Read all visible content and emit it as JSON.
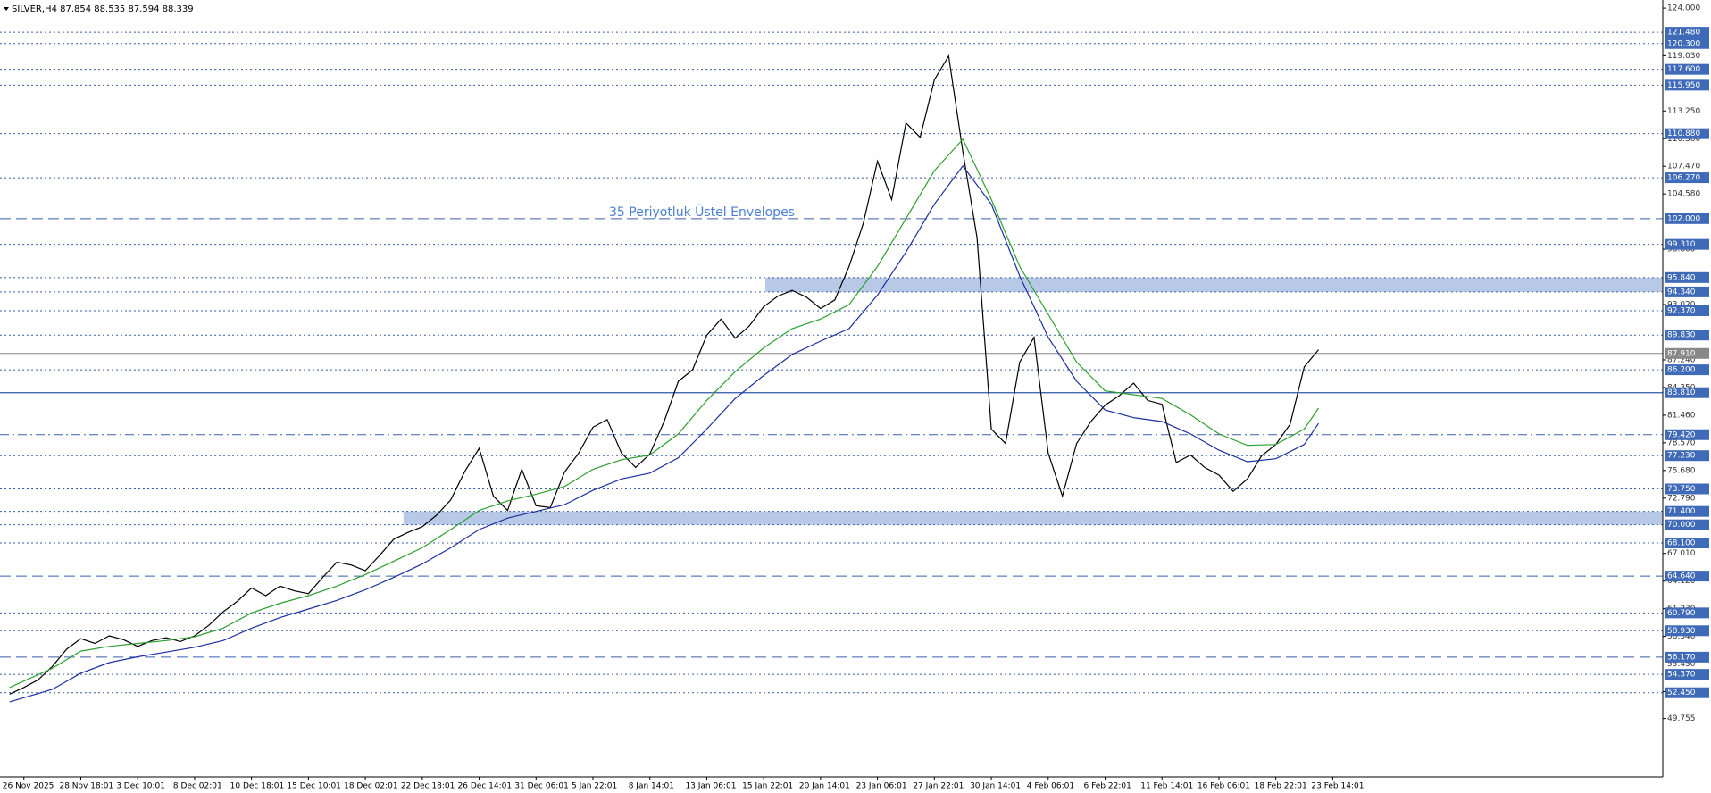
{
  "chart_data": {
    "type": "line",
    "title": "SILVER,H4  87.854 88.535 87.594 88.339",
    "annotation": "35 Periyotluk Üstel Envelopes",
    "xlim": [
      -0.42,
      28.8
    ],
    "ylim": [
      43.65,
      124.85
    ],
    "xticks": [
      {
        "value": 0,
        "label": "26 Nov 2025"
      },
      {
        "value": 1,
        "label": "28 Nov 18:01"
      },
      {
        "value": 2,
        "label": "3 Dec 10:01"
      },
      {
        "value": 3,
        "label": "8 Dec 02:01"
      },
      {
        "value": 4,
        "label": "10 Dec 18:01"
      },
      {
        "value": 5,
        "label": "15 Dec 10:01"
      },
      {
        "value": 6,
        "label": "18 Dec 02:01"
      },
      {
        "value": 7,
        "label": "22 Dec 18:01"
      },
      {
        "value": 8,
        "label": "26 Dec 14:01"
      },
      {
        "value": 9,
        "label": "31 Dec 06:01"
      },
      {
        "value": 10,
        "label": "5 Jan 22:01"
      },
      {
        "value": 11,
        "label": "8 Jan 14:01"
      },
      {
        "value": 12,
        "label": "13 Jan 06:01"
      },
      {
        "value": 13,
        "label": "15 Jan 22:01"
      },
      {
        "value": 14,
        "label": "20 Jan 14:01"
      },
      {
        "value": 15,
        "label": "23 Jan 06:01"
      },
      {
        "value": 16,
        "label": "27 Jan 22:01"
      },
      {
        "value": 17,
        "label": "30 Jan 14:01"
      },
      {
        "value": 18,
        "label": "4 Feb 06:01"
      },
      {
        "value": 19,
        "label": "6 Feb 22:01"
      },
      {
        "value": 20,
        "label": "11 Feb 14:01"
      },
      {
        "value": 21,
        "label": "16 Feb 06:01"
      },
      {
        "value": 22,
        "label": "18 Feb 22:01"
      },
      {
        "value": 23,
        "label": "23 Feb 14:01"
      }
    ],
    "yticks": [
      {
        "value": 124,
        "label": "124.000"
      },
      {
        "value": 119.03,
        "label": "119.030"
      },
      {
        "value": 113.25,
        "label": "113.250"
      },
      {
        "value": 110.36,
        "label": "110.360"
      },
      {
        "value": 107.47,
        "label": "107.470"
      },
      {
        "value": 104.58,
        "label": "104.580"
      },
      {
        "value": 98.8,
        "label": "98.800"
      },
      {
        "value": 93.02,
        "label": "93.020"
      },
      {
        "value": 87.24,
        "label": "87.240"
      },
      {
        "value": 84.35,
        "label": "84.350"
      },
      {
        "value": 81.46,
        "label": "81.460"
      },
      {
        "value": 78.57,
        "label": "78.570"
      },
      {
        "value": 75.68,
        "label": "75.680"
      },
      {
        "value": 72.79,
        "label": "72.790"
      },
      {
        "value": 67.01,
        "label": "67.010"
      },
      {
        "value": 64.12,
        "label": "64.120"
      },
      {
        "value": 61.23,
        "label": "61.230"
      },
      {
        "value": 58.34,
        "label": "58.340"
      },
      {
        "value": 55.45,
        "label": "55.450"
      },
      {
        "value": 52.56,
        "label": "52.560"
      },
      {
        "value": 49.755,
        "label": "49.755"
      }
    ],
    "levels": [
      {
        "value": 121.48,
        "label": "121.480",
        "style": "dotted"
      },
      {
        "value": 120.3,
        "label": "120.300",
        "style": "dotted"
      },
      {
        "value": 117.6,
        "label": "117.600",
        "style": "dotted"
      },
      {
        "value": 115.95,
        "label": "115.950",
        "style": "dotted"
      },
      {
        "value": 110.88,
        "label": "110.880",
        "style": "dotted"
      },
      {
        "value": 106.27,
        "label": "106.270",
        "style": "dotted"
      },
      {
        "value": 102,
        "label": "102.000",
        "style": "dashed"
      },
      {
        "value": 99.31,
        "label": "99.310",
        "style": "dotted"
      },
      {
        "value": 95.84,
        "label": "95.840",
        "style": "dotted"
      },
      {
        "value": 94.34,
        "label": "94.340",
        "style": "dotted"
      },
      {
        "value": 92.37,
        "label": "92.370",
        "style": "dotted"
      },
      {
        "value": 89.83,
        "label": "89.830",
        "style": "dotted"
      },
      {
        "value": 87.91,
        "label": "87.910",
        "style": "solid-gray"
      },
      {
        "value": 86.2,
        "label": "86.200",
        "style": "dotted"
      },
      {
        "value": 83.81,
        "label": "83.810",
        "style": "solid"
      },
      {
        "value": 79.42,
        "label": "79.420",
        "style": "dashdot"
      },
      {
        "value": 77.23,
        "label": "77.230",
        "style": "dotted"
      },
      {
        "value": 73.75,
        "label": "73.750",
        "style": "dotted"
      },
      {
        "value": 71.4,
        "label": "71.400",
        "style": "dotted"
      },
      {
        "value": 70,
        "label": "70.000",
        "style": "dotted"
      },
      {
        "value": 68.1,
        "label": "68.100",
        "style": "dotted"
      },
      {
        "value": 64.64,
        "label": "64.640",
        "style": "dashed"
      },
      {
        "value": 60.79,
        "label": "60.790",
        "style": "dotted"
      },
      {
        "value": 58.93,
        "label": "58.930",
        "style": "dotted"
      },
      {
        "value": 56.17,
        "label": "56.170",
        "style": "dashed"
      },
      {
        "value": 54.37,
        "label": "54.370",
        "style": "dotted"
      },
      {
        "value": 52.45,
        "label": "52.450",
        "style": "dotted"
      }
    ],
    "zones": [
      {
        "x_start": 13.03,
        "low": 94.34,
        "high": 95.84,
        "color": "#b7c9e6"
      },
      {
        "x_start": 6.67,
        "low": 70,
        "high": 71.4,
        "color": "#b7c9e6"
      }
    ],
    "series": [
      {
        "color": "#000000",
        "x": [
          -0.25,
          0,
          0.25,
          0.5,
          0.75,
          1,
          1.25,
          1.5,
          1.75,
          2,
          2.25,
          2.5,
          2.75,
          3,
          3.25,
          3.5,
          3.75,
          4,
          4.25,
          4.5,
          4.75,
          5,
          5.25,
          5.5,
          5.75,
          6,
          6.25,
          6.5,
          6.75,
          7,
          7.25,
          7.5,
          7.75,
          8,
          8.25,
          8.5,
          8.75,
          9,
          9.25,
          9.5,
          9.75,
          10,
          10.25,
          10.5,
          10.75,
          11,
          11.25,
          11.5,
          11.75,
          12,
          12.25,
          12.5,
          12.75,
          13,
          13.25,
          13.5,
          13.75,
          14,
          14.25,
          14.5,
          14.75,
          15,
          15.25,
          15.5,
          15.75,
          16,
          16.25,
          16.5,
          16.75,
          17,
          17.25,
          17.5,
          17.75,
          18,
          18.25,
          18.5,
          18.75,
          19,
          19.25,
          19.5,
          19.75,
          20,
          20.25,
          20.5,
          20.75,
          21,
          21.25,
          21.5,
          21.75,
          22,
          22.25,
          22.5,
          22.75
        ],
        "values": [
          52.3,
          53.0,
          53.8,
          55.2,
          57.0,
          58.1,
          57.6,
          58.4,
          58.0,
          57.3,
          57.9,
          58.2,
          57.8,
          58.4,
          59.5,
          60.9,
          62.0,
          63.4,
          62.6,
          63.6,
          63.1,
          62.8,
          64.5,
          66.1,
          65.8,
          65.2,
          66.8,
          68.5,
          69.2,
          69.8,
          71.0,
          72.6,
          75.6,
          78.0,
          73.0,
          71.5,
          75.8,
          72.0,
          71.8,
          75.5,
          77.5,
          80.2,
          81.0,
          77.5,
          76.0,
          77.4,
          80.8,
          85.0,
          86.2,
          89.8,
          91.5,
          89.5,
          90.8,
          92.8,
          93.9,
          94.5,
          93.8,
          92.6,
          93.5,
          97.0,
          101.5,
          108.0,
          104.0,
          112.0,
          110.5,
          116.5,
          119.0,
          109.0,
          100.0,
          80.0,
          78.5,
          87.0,
          89.6,
          77.5,
          73.0,
          78.5,
          80.8,
          82.5,
          83.5,
          84.8,
          83.0,
          82.6,
          76.5,
          77.3,
          76.0,
          75.2,
          73.5,
          74.8,
          77.2,
          78.4,
          80.5,
          86.5,
          88.3
        ]
      },
      {
        "color": "#2e9e2e",
        "x": [
          -0.25,
          0.5,
          1,
          1.5,
          2,
          2.5,
          3,
          3.5,
          4,
          4.5,
          5,
          5.5,
          6,
          6.5,
          7,
          7.5,
          8,
          8.5,
          9,
          9.5,
          10,
          10.5,
          11,
          11.5,
          12,
          12.5,
          13,
          13.5,
          14,
          14.5,
          15,
          15.5,
          16,
          16.5,
          17,
          17.5,
          18,
          18.5,
          19,
          19.5,
          20,
          20.5,
          21,
          21.5,
          22,
          22.5,
          22.75
        ],
        "values": [
          53.0,
          55.0,
          56.8,
          57.3,
          57.6,
          57.9,
          58.3,
          59.2,
          60.8,
          61.8,
          62.6,
          63.6,
          64.8,
          66.2,
          67.6,
          69.5,
          71.5,
          72.5,
          73.2,
          74.0,
          75.8,
          76.8,
          77.3,
          79.5,
          83.0,
          86.0,
          88.5,
          90.5,
          91.5,
          93.0,
          97.0,
          102.0,
          107.0,
          110.3,
          104.0,
          97.0,
          92.0,
          87.0,
          84.0,
          83.6,
          83.2,
          81.5,
          79.5,
          78.3,
          78.4,
          80.0,
          82.2
        ]
      },
      {
        "color": "#1c2fa0",
        "x": [
          -0.25,
          0.5,
          1,
          1.5,
          2,
          2.5,
          3,
          3.5,
          4,
          4.5,
          5,
          5.5,
          6,
          6.5,
          7,
          7.5,
          8,
          8.5,
          9,
          9.5,
          10,
          10.5,
          11,
          11.5,
          12,
          12.5,
          13,
          13.5,
          14,
          14.5,
          15,
          15.5,
          16,
          16.5,
          17,
          17.5,
          18,
          18.5,
          19,
          19.5,
          20,
          20.5,
          21,
          21.5,
          22,
          22.5,
          22.75
        ],
        "values": [
          51.5,
          52.8,
          54.5,
          55.6,
          56.2,
          56.7,
          57.2,
          57.9,
          59.2,
          60.3,
          61.2,
          62.1,
          63.2,
          64.5,
          65.9,
          67.6,
          69.5,
          70.7,
          71.4,
          72.1,
          73.6,
          74.8,
          75.4,
          77.0,
          80.0,
          83.2,
          85.6,
          87.8,
          89.2,
          90.5,
          94.0,
          98.5,
          103.5,
          107.5,
          103.5,
          96.0,
          89.6,
          85.0,
          82.0,
          81.2,
          80.8,
          79.5,
          77.8,
          76.6,
          76.9,
          78.4,
          80.6
        ]
      }
    ]
  }
}
